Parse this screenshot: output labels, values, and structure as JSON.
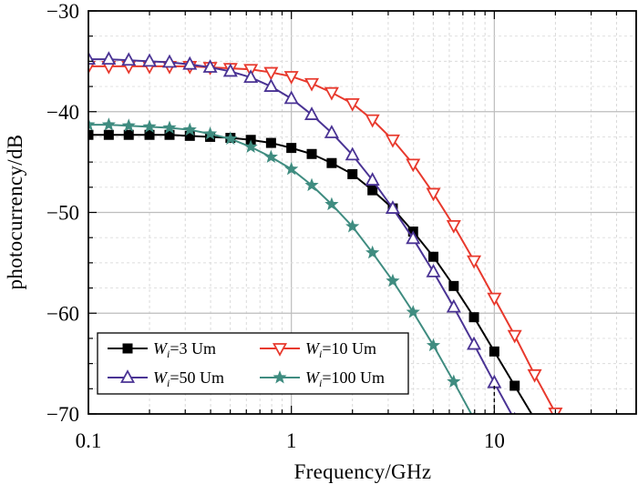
{
  "chart_data": {
    "type": "line",
    "xlabel": "Frequency/GHz",
    "ylabel": "photocurrency/dB",
    "xscale": "log",
    "xlim": [
      0.1,
      50
    ],
    "ylim": [
      -70,
      -30
    ],
    "x_ticks": [
      0.1,
      1,
      10
    ],
    "x_tick_labels": [
      "0.1",
      "1",
      "10"
    ],
    "y_ticks": [
      -30,
      -40,
      -50,
      -60,
      -70
    ],
    "y_tick_labels": [
      "−30",
      "−40",
      "−50",
      "−60",
      "−70"
    ],
    "grid": true,
    "legend_position": "bottom-left",
    "series": [
      {
        "name": "W",
        "subscript": "i",
        "suffix": "=3 Um",
        "color": "#000000",
        "marker": "square",
        "x": [
          0.1,
          0.126,
          0.158,
          0.2,
          0.251,
          0.316,
          0.398,
          0.501,
          0.631,
          0.794,
          1.0,
          1.26,
          1.58,
          2.0,
          2.51,
          3.16,
          3.98,
          5.01,
          6.31,
          7.94,
          10.0,
          12.6,
          15.8
        ],
        "y": [
          -42.3,
          -42.3,
          -42.3,
          -42.3,
          -42.3,
          -42.4,
          -42.5,
          -42.6,
          -42.8,
          -43.1,
          -43.6,
          -44.2,
          -45.1,
          -46.2,
          -47.8,
          -49.6,
          -51.9,
          -54.4,
          -57.3,
          -60.4,
          -63.8,
          -67.2,
          -70.5
        ]
      },
      {
        "name": "W",
        "subscript": "i",
        "suffix": "=10 Um",
        "color": "#e8392d",
        "marker": "triangle-down",
        "x": [
          0.1,
          0.126,
          0.158,
          0.2,
          0.251,
          0.316,
          0.398,
          0.501,
          0.631,
          0.794,
          1.0,
          1.26,
          1.58,
          2.0,
          2.51,
          3.16,
          3.98,
          5.01,
          6.31,
          7.94,
          10.0,
          12.6,
          15.8,
          20.0
        ],
        "y": [
          -35.5,
          -35.5,
          -35.5,
          -35.5,
          -35.5,
          -35.5,
          -35.6,
          -35.7,
          -35.8,
          -36.1,
          -36.5,
          -37.2,
          -38.1,
          -39.2,
          -40.8,
          -42.8,
          -45.2,
          -48.1,
          -51.3,
          -54.8,
          -58.5,
          -62.2,
          -66.1,
          -69.9
        ]
      },
      {
        "name": "W",
        "subscript": "i",
        "suffix": "=50 Um",
        "color": "#4a3394",
        "marker": "triangle-up",
        "x": [
          0.1,
          0.126,
          0.158,
          0.2,
          0.251,
          0.316,
          0.398,
          0.501,
          0.631,
          0.794,
          1.0,
          1.26,
          1.58,
          2.0,
          2.51,
          3.16,
          3.98,
          5.01,
          6.31,
          7.94,
          10.0,
          12.6
        ],
        "y": [
          -34.8,
          -34.8,
          -34.9,
          -35.0,
          -35.1,
          -35.3,
          -35.6,
          -36.0,
          -36.6,
          -37.5,
          -38.7,
          -40.3,
          -42.1,
          -44.3,
          -46.8,
          -49.6,
          -52.6,
          -55.9,
          -59.4,
          -63.1,
          -66.9,
          -70.6
        ]
      },
      {
        "name": "W",
        "subscript": "i",
        "suffix": "=100 Um",
        "color": "#3f8c80",
        "marker": "star",
        "x": [
          0.1,
          0.126,
          0.158,
          0.2,
          0.251,
          0.316,
          0.398,
          0.501,
          0.631,
          0.794,
          1.0,
          1.26,
          1.58,
          2.0,
          2.51,
          3.16,
          3.98,
          5.01,
          6.31,
          7.94
        ],
        "y": [
          -41.3,
          -41.3,
          -41.4,
          -41.5,
          -41.6,
          -41.8,
          -42.2,
          -42.7,
          -43.5,
          -44.5,
          -45.7,
          -47.3,
          -49.2,
          -51.4,
          -54.0,
          -56.8,
          -59.9,
          -63.2,
          -66.8,
          -70.5
        ]
      }
    ]
  }
}
